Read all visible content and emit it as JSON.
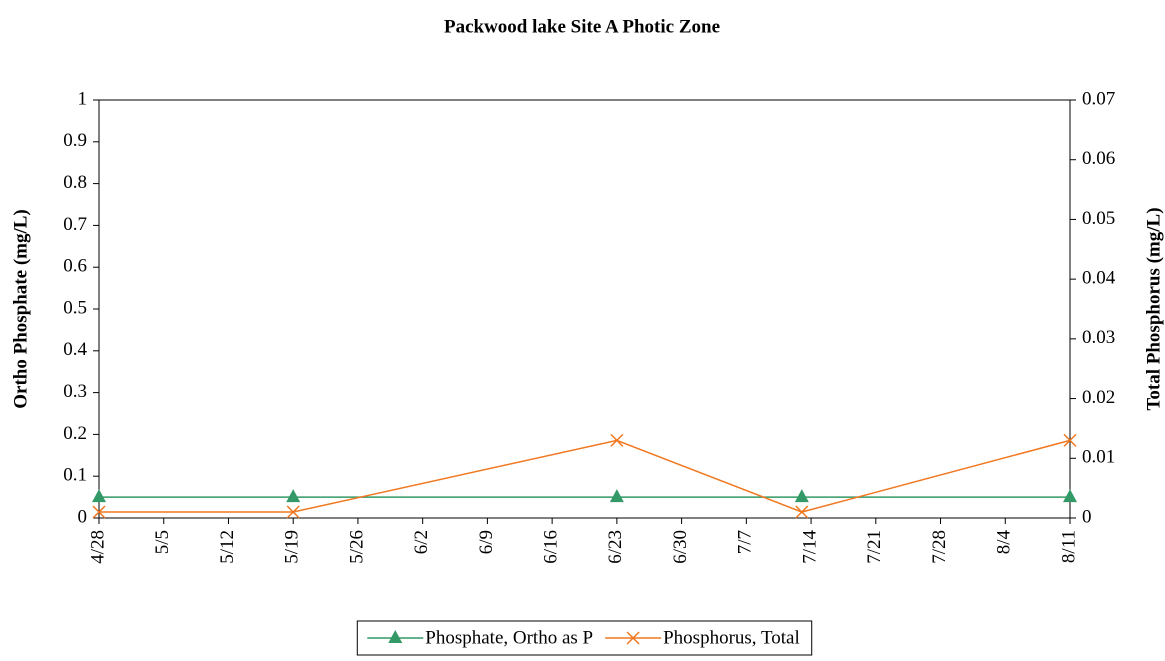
{
  "chart_data": {
    "type": "line",
    "title": "Packwood lake Site A Photic Zone",
    "y_label": "Ortho Phosphate (mg/L)",
    "y2_label": "Total Phosphorus (mg/L)",
    "x": [
      "4/28",
      "5/19",
      "6/23",
      "7/13",
      "8/11"
    ],
    "xlim": [
      "4/28",
      "8/11"
    ],
    "xticks": [
      "4/28",
      "5/5",
      "5/12",
      "5/19",
      "5/26",
      "6/2",
      "6/9",
      "6/16",
      "6/23",
      "6/30",
      "7/7",
      "7/14",
      "7/21",
      "7/28",
      "8/4",
      "8/11"
    ],
    "ylim": [
      0,
      1
    ],
    "yticks": [
      0,
      0.1,
      0.2,
      0.3,
      0.4,
      0.5,
      0.6,
      0.7,
      0.8,
      0.9,
      1
    ],
    "y2lim": [
      0,
      0.07
    ],
    "y2ticks": [
      0,
      0.01,
      0.02,
      0.03,
      0.04,
      0.05,
      0.06,
      0.07
    ],
    "legend": "bottom",
    "series": [
      {
        "name": "Phosphate, Ortho as P",
        "color": "#339966",
        "marker": "triangle",
        "values": [
          0.05,
          0.05,
          0.05,
          0.05,
          0.05
        ]
      },
      {
        "name": "Phosphorus, Total",
        "color": "#f07820",
        "marker": "x",
        "axis": "y2",
        "values": [
          0.001,
          0.001,
          0.013,
          0.001,
          0.013
        ]
      }
    ]
  }
}
